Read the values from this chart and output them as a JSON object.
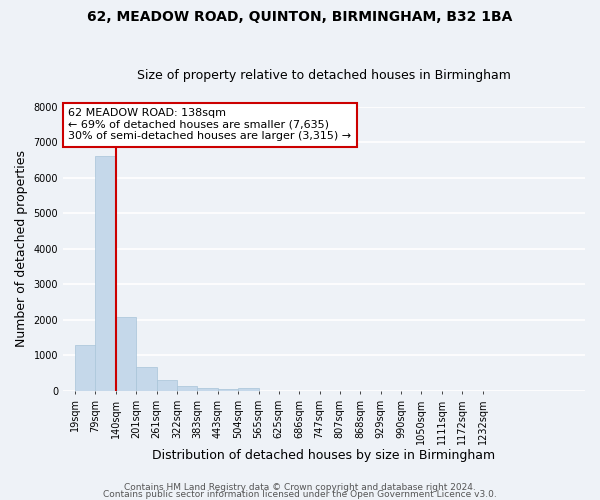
{
  "title1": "62, MEADOW ROAD, QUINTON, BIRMINGHAM, B32 1BA",
  "title2": "Size of property relative to detached houses in Birmingham",
  "xlabel": "Distribution of detached houses by size in Birmingham",
  "ylabel": "Number of detached properties",
  "bar_left_edges": [
    19,
    79,
    140,
    201,
    261,
    322,
    383,
    443,
    504,
    565,
    625,
    686,
    747,
    807,
    868,
    929,
    990,
    1050,
    1111,
    1172
  ],
  "bar_heights": [
    1300,
    6600,
    2080,
    670,
    300,
    140,
    90,
    55,
    70,
    0,
    0,
    0,
    0,
    0,
    0,
    0,
    0,
    0,
    0,
    0
  ],
  "bin_width": 61,
  "bar_color": "#c5d8ea",
  "bar_edgecolor": "#a8c4d8",
  "property_line_x": 140,
  "ylim": [
    0,
    8000
  ],
  "yticks": [
    0,
    1000,
    2000,
    3000,
    4000,
    5000,
    6000,
    7000,
    8000
  ],
  "xtick_labels": [
    "19sqm",
    "79sqm",
    "140sqm",
    "201sqm",
    "261sqm",
    "322sqm",
    "383sqm",
    "443sqm",
    "504sqm",
    "565sqm",
    "625sqm",
    "686sqm",
    "747sqm",
    "807sqm",
    "868sqm",
    "929sqm",
    "990sqm",
    "1050sqm",
    "1111sqm",
    "1172sqm",
    "1232sqm"
  ],
  "annotation_title": "62 MEADOW ROAD: 138sqm",
  "annotation_line1": "← 69% of detached houses are smaller (7,635)",
  "annotation_line2": "30% of semi-detached houses are larger (3,315) →",
  "red_line_color": "#cc0000",
  "annotation_border_color": "#cc0000",
  "footer1": "Contains HM Land Registry data © Crown copyright and database right 2024.",
  "footer2": "Contains public sector information licensed under the Open Government Licence v3.0.",
  "background_color": "#eef2f7",
  "grid_color": "#ffffff",
  "title_fontsize": 10,
  "subtitle_fontsize": 9,
  "axis_label_fontsize": 9,
  "tick_fontsize": 7,
  "footer_fontsize": 6.5,
  "annotation_fontsize": 8
}
